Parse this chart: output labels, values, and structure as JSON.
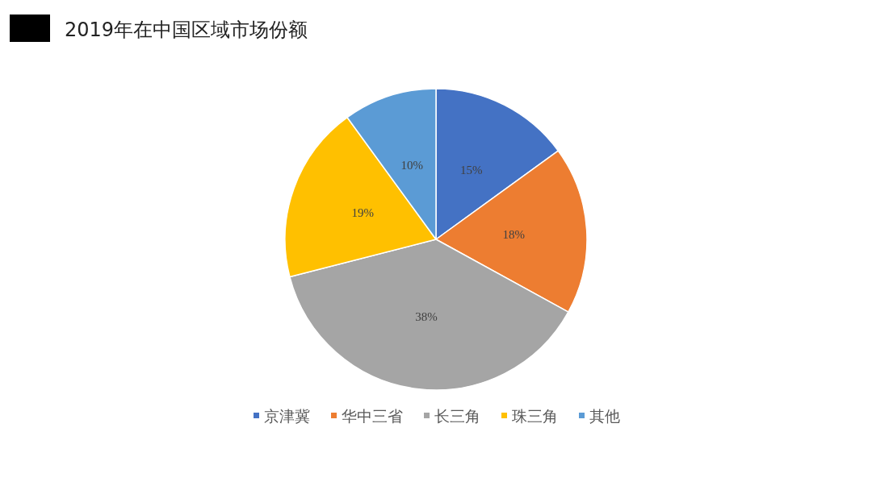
{
  "chart_data": {
    "type": "pie",
    "title": "2019年在中国区域市场份额",
    "categories": [
      "京津冀",
      "华中三省",
      "长三角",
      "珠三角",
      "其他"
    ],
    "values": [
      15,
      18,
      38,
      19,
      10
    ],
    "value_labels": [
      "15%",
      "18%",
      "38%",
      "19%",
      "10%"
    ],
    "colors": [
      "#4472c4",
      "#ed7d31",
      "#a5a5a5",
      "#ffc000",
      "#5b9bd5"
    ],
    "legend": "bottom"
  }
}
